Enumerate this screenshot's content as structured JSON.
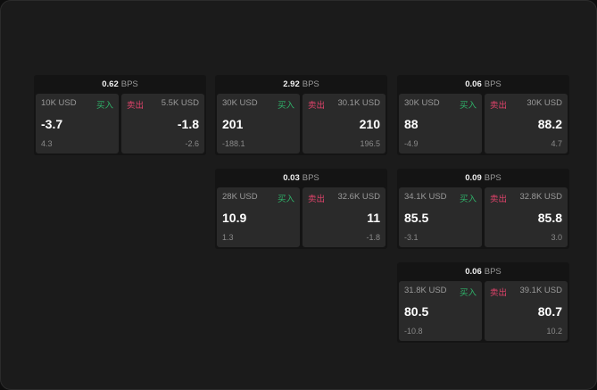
{
  "unit": "BPS",
  "buy_label": "买入",
  "sell_label": "卖出",
  "colors": {
    "buy": "#2fb36a",
    "sell": "#e0436b",
    "background": "#1b1b1b"
  },
  "cards": [
    {
      "spread": "0.62",
      "bid": {
        "size": "10K USD",
        "price": "-3.7",
        "change": "4.3"
      },
      "ask": {
        "size": "5.5K USD",
        "price": "-1.8",
        "change": "-2.6"
      }
    },
    {
      "spread": "2.92",
      "bid": {
        "size": "30K USD",
        "price": "201",
        "change": "-188.1"
      },
      "ask": {
        "size": "30.1K USD",
        "price": "210",
        "change": "196.5"
      }
    },
    {
      "spread": "0.06",
      "bid": {
        "size": "30K USD",
        "price": "88",
        "change": "-4.9"
      },
      "ask": {
        "size": "30K USD",
        "price": "88.2",
        "change": "4.7"
      }
    },
    {
      "spread": "0.03",
      "bid": {
        "size": "28K USD",
        "price": "10.9",
        "change": "1.3"
      },
      "ask": {
        "size": "32.6K USD",
        "price": "11",
        "change": "-1.8"
      }
    },
    {
      "spread": "0.09",
      "bid": {
        "size": "34.1K USD",
        "price": "85.5",
        "change": "-3.1"
      },
      "ask": {
        "size": "32.8K USD",
        "price": "85.8",
        "change": "3.0"
      }
    },
    {
      "spread": "0.06",
      "bid": {
        "size": "31.8K USD",
        "price": "80.5",
        "change": "-10.8"
      },
      "ask": {
        "size": "39.1K USD",
        "price": "80.7",
        "change": "10.2"
      }
    }
  ]
}
